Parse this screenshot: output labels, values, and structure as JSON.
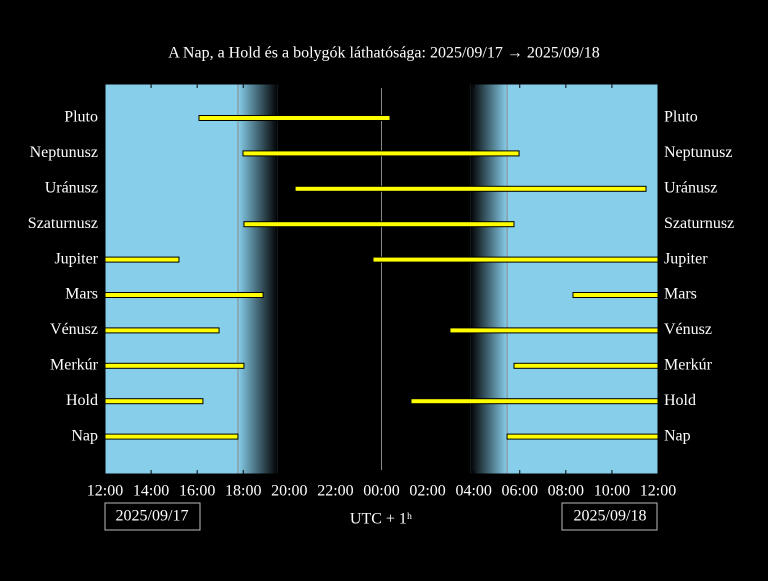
{
  "chart_data": {
    "type": "visibility",
    "title": "A Nap, a Hold és a bolygók láthatósága: 2025/09/17 → 2025/09/18",
    "xlabel": "UTC + 1ʰ",
    "start_date": "2025/09/17",
    "end_date": "2025/09/18",
    "xlim": [
      0,
      24
    ],
    "xticks": [
      {
        "value": 0,
        "label": "12:00"
      },
      {
        "value": 2,
        "label": "14:00"
      },
      {
        "value": 4,
        "label": "16:00"
      },
      {
        "value": 6,
        "label": "18:00"
      },
      {
        "value": 8,
        "label": "20:00"
      },
      {
        "value": 10,
        "label": "22:00"
      },
      {
        "value": 12,
        "label": "00:00"
      },
      {
        "value": 14,
        "label": "02:00"
      },
      {
        "value": 16,
        "label": "04:00"
      },
      {
        "value": 18,
        "label": "06:00"
      },
      {
        "value": 20,
        "label": "08:00"
      },
      {
        "value": 22,
        "label": "10:00"
      },
      {
        "value": 24,
        "label": "12:00"
      }
    ],
    "categories": [
      "Pluto",
      "Neptunusz",
      "Uránusz",
      "Szaturnusz",
      "Jupiter",
      "Mars",
      "Vénusz",
      "Merkúr",
      "Hold",
      "Nap"
    ],
    "intervals": [
      [
        [
          4.08,
          12.37
        ]
      ],
      [
        [
          5.99,
          17.97
        ]
      ],
      [
        [
          8.25,
          23.48
        ]
      ],
      [
        [
          6.03,
          17.75
        ]
      ],
      [
        [
          0,
          3.21
        ],
        [
          11.63,
          24
        ]
      ],
      [
        [
          0,
          6.86
        ],
        [
          20.31,
          24
        ]
      ],
      [
        [
          0,
          4.95
        ],
        [
          14.97,
          24
        ]
      ],
      [
        [
          0,
          6.03
        ],
        [
          17.75,
          24
        ]
      ],
      [
        [
          0,
          4.25
        ],
        [
          13.28,
          24
        ]
      ],
      [
        [
          0,
          5.77
        ],
        [
          17.45,
          24
        ]
      ]
    ],
    "sunset": 5.77,
    "dark_start": 7.5,
    "dark_end": 15.85,
    "sunrise": 17.45,
    "midnight": 12,
    "day_color": "#87ceeb",
    "night_color": "#000000",
    "bar_color": "#ffff00"
  }
}
